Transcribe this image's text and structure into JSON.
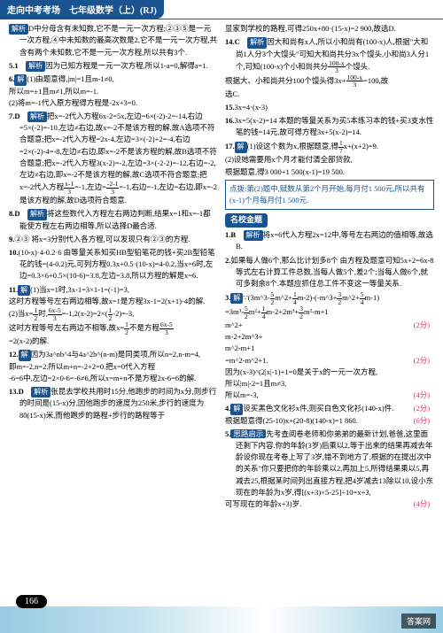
{
  "header": "走向中考考场　七年级数学（上）(RJ)",
  "pageNum": "166",
  "watermark": "答案网",
  "left": {
    "intro": "D中分母含有未知数,它不是一元一次方程;②③⑤是一元一次方程,④中未知数的最高次数是2,它不是一元一次方程,共含有两个未知数,它不是一元一次方程,所以共有3个.",
    "items": [
      {
        "n": "5.1",
        "body": "因为已知方程是一元一次方程,所以1-a=0,解得a=1."
      },
      {
        "n": "6.",
        "body": "(1)由题意得,|m|=1且m-1≠0,",
        "sub": [
          "所以m=±1且m≠1,所以m=-1.",
          "(2)将m=-1代入原方程得方程是-2x+3=0."
        ]
      },
      {
        "n": "7.D",
        "body": "把x=-2代入方程6x-2=5x,左边=6×(-2)-2=-14,右边=5×(-2)=-10.左边≠右边,故x=-2不是该方程的解,故A选项不符合题意;把x=-2代入方程=2x-4,左边=3×(-2)+2=-4,右边=2×(-2)-4=-8,左边≠右边,即x=-2不是该方程的解,故B选项不符合题意;把x=-2代入方程3(x-2)=-2,左边=3×(-2-2)=-12,右边=-2,左边≠右边,即x=-2不是该方程的解,故C选项不符合题意;把x=-2代入方程",
        "frac1": {
          "t": "x-1",
          "b": "3"
        },
        "mid": "=-1,左边=",
        "frac2": {
          "t": "-2-1",
          "b": "3"
        },
        "end": "=-1,右边=-1,左边=右边,即x=-2是该方程的解,故D选项符合题意."
      },
      {
        "n": "8.D",
        "body": "将这些数代入方程左右两边判断,结果x=1和x=-1都能使方程左右两边相等,所以选择D最合适."
      },
      {
        "n": "9.",
        "body": "②③ 将x=3分别代入各方程,可以发现只有②③的方程."
      },
      {
        "n": "10.",
        "body": "(10-x)·4-0.2·6 由等量关系知买HB型铅笔花的钱+买2B型铅笔花的钱=(4-0.2)元,可列方程0.3x+0.5·(10-x)=4-0.2,当x=6时,左边=0.3×6+0.5×(10-6)=3.8,左边=3.8,所以方程的解是x=6."
      },
      {
        "n": "11.",
        "body": "(1)当x=1时,3x-1=3×1-1=(-1)=3,",
        "tag": "解",
        "sub": [
          "这时方程等号左右两边相等,故x=1是方程3x-1=2(x+1)-4的解.",
          "(2)当x=",
          "(2frac)",
          "时,",
          "(2frac2)",
          "=-1,2(x-2)=2×(",
          "(2frac)",
          "-2)=-3,",
          "这时方程等号左右两边不相等,故x=",
          "(2frac)",
          "不是方程",
          "(2frac3)",
          "=2(x-2)的解."
        ],
        "f": {
          "a": {
            "t": "1",
            "b": "2"
          },
          "b": {
            "t": "6x-5",
            "b": "3"
          },
          "c": {
            "t": "6x-5",
            "b": "3"
          }
        }
      },
      {
        "n": "12.",
        "body": "因为3a^nb^4与4a^2b^(n-m)是同类项,所以n=2,n-m=4,",
        "tag": "解",
        "sub": [
          "即m=-2,n=2.所以m+n=-2+2=0.把x=0代入方程",
          "-6=6中,左边=2×0-6=-6≠6,所以x=m+n不是方程2x-6=6的解."
        ]
      },
      {
        "n": "13.D",
        "body": "张昆去学校共用时15分,他跑步的时间为x分,则步行的时间是(15-x)分,因他跑步的速度为250米,步行的速度为80(15-x)米,而他跑步的路程+步行的路程等于"
      }
    ]
  },
  "right": {
    "items": [
      {
        "pre": "显家到学校的路程,可得250x+80·(15-x)=2 900,故选D."
      },
      {
        "n": "14.C",
        "body": "因大和尚有x人,所以小和尚有(100-x)人,根据\"大和尚1人分3个大馒头\"可知大和尚共分3x个馒头,小和尚3人分1个,可知(100-x)个小和尚共分",
        "frac": {
          "t": "100-x",
          "b": "3"
        },
        "end": "个馒头.",
        "sub": [
          "根据大、小和尚共分100个馒头得3x+",
          "=100,故",
          "选C."
        ],
        "subfrac": {
          "t": "100-x",
          "b": "3"
        }
      },
      {
        "n": "15.",
        "body": "3x=4·(x-3)"
      },
      {
        "n": "16.",
        "body": "3x=5(x-2)=14 本题的等量关系为买5本练习本的钱+买3支水性笔的钱=14元,故可得方程3x+5(x-2)=14."
      },
      {
        "n": "17.",
        "body": "(1)设这个数为x,根据题意,得",
        "tag": "解",
        "frac": {
          "t": "1",
          "b": "7"
        },
        "end": "x+(x+2)=9.",
        "sub": [
          "(2)设她需要用x个月才能付清全部贷款,",
          "根据题意,得3 000+1 500(x-1)=19 500."
        ]
      },
      {
        "box": "点拨:第(2)题中,赋数从第2个月开始,每月付1 500元,所以共有(x-1)个月每月付1 500元."
      }
    ],
    "section": "名校金题",
    "items2": [
      {
        "n": "1.B",
        "body": "将x=6代入方程2x=12中,等号左右两边的值相等,故选B."
      },
      {
        "n": "2.",
        "body": "如果每人做6个,那么比计划多8个 由方程及题意可知5x+2=6x-8等式左右计算工件总数,当每人做5个,差2个;当每人做6个,就可多剩余8个.本题应抓住总工件不变这一等量关系."
      },
      {
        "n": "3.",
        "body": "∵(3m^3-",
        "tag": "解",
        "frac": {
          "t": "5",
          "b": "2"
        },
        "mid": "m^2+",
        "frac2": {
          "t": "1",
          "b": "4"
        },
        "mid2": "m-2)-(-m^3+",
        "frac3": {
          "t": "3",
          "b": "2"
        },
        "mid3": "m^2+",
        "frac4": {
          "t": "5",
          "b": "4"
        },
        "end": "m-1)",
        "sub": [
          "=3m^3-",
          "m^2+",
          "m-2+2m^3+",
          "m^2-m+1",
          "=m^2-m^2+1.",
          "因为(x-3)^(2|x|-1)+1=0是关于x的一元一次方程,",
          "所以|m|-2=1且m≠3,",
          "所以m=-3,",
          "所以原式=m^2-m^2+1",
          "=(-3)^2-(-3)^2+1",
          "=-27+9-6+1=-29."
        ],
        "subfrac": [
          {
            "t": "5",
            "b": "2"
          },
          {
            "t": "1",
            "b": "4"
          },
          {
            "t": "3",
            "b": "2"
          }
        ],
        "scores": [
          "(2分)",
          "(2分)",
          "(4分)"
        ]
      },
      {
        "n": "4.",
        "body": "设买黑色文化衫x件,则买白色文化衫(140-x)件.",
        "tag": "解",
        "score": "(2分)",
        "sub": [
          "根据题意得(25-10)x+(20-8)(140-x)=1 860.",
          "先考查阅卷老师和你弟弟的最新计划,爸爸,这里面还剩下内容.你的年龄(3岁)后乘以2,等于出来的结果再减去年龄设你现在考卷上写了3岁,错不到地方了,根据的在提出次中的关系\"你只要把你的年龄乘以2,再加上5,所得结果乘以5,再减去25,根据某时间列出直接方程,把4岁减去13除以10,设小东现在的年龄为x岁,得[(x+3)×5-25]÷10=x+3,"
        ],
        "scores2": [
          "(6分)",
          "(4分)"
        ]
      },
      {
        "n": "5.",
        "body": "可写现在的年龄x+3)岁.",
        "tag": "思路启示"
      }
    ]
  }
}
